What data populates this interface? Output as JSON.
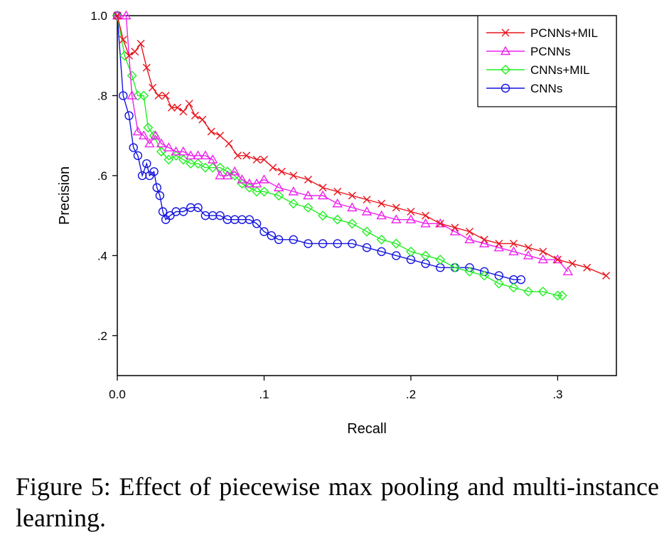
{
  "caption": "Figure 5: Effect of piecewise max pooling and multi-instance learning.",
  "chart_data": {
    "type": "line",
    "title": "",
    "xlabel": "Recall",
    "ylabel": "Precision",
    "xlim": [
      0.0,
      0.34
    ],
    "ylim": [
      0.1,
      1.0
    ],
    "x_ticks": [
      {
        "v": 0.0,
        "label": "0.0"
      },
      {
        "v": 0.1,
        "label": ".1"
      },
      {
        "v": 0.2,
        "label": ".2"
      },
      {
        "v": 0.3,
        "label": ".3"
      }
    ],
    "y_ticks": [
      {
        "v": 0.2,
        "label": ".2"
      },
      {
        "v": 0.4,
        "label": ".4"
      },
      {
        "v": 0.6,
        "label": ".6"
      },
      {
        "v": 0.8,
        "label": ".8"
      },
      {
        "v": 1.0,
        "label": "1.0"
      }
    ],
    "grid": false,
    "legend_position": "top-right",
    "series": [
      {
        "name": "PCNNs+MIL",
        "color": "#e8141c",
        "marker": "x",
        "x": [
          0.0,
          0.004,
          0.008,
          0.012,
          0.016,
          0.02,
          0.024,
          0.028,
          0.033,
          0.037,
          0.041,
          0.045,
          0.049,
          0.053,
          0.058,
          0.064,
          0.07,
          0.076,
          0.082,
          0.088,
          0.095,
          0.1,
          0.106,
          0.112,
          0.12,
          0.13,
          0.14,
          0.15,
          0.16,
          0.17,
          0.18,
          0.19,
          0.2,
          0.21,
          0.22,
          0.23,
          0.24,
          0.25,
          0.26,
          0.27,
          0.28,
          0.29,
          0.3,
          0.31,
          0.32,
          0.333
        ],
        "y": [
          1.0,
          0.94,
          0.9,
          0.91,
          0.93,
          0.87,
          0.82,
          0.8,
          0.8,
          0.77,
          0.77,
          0.76,
          0.78,
          0.75,
          0.74,
          0.71,
          0.7,
          0.68,
          0.65,
          0.65,
          0.64,
          0.64,
          0.62,
          0.61,
          0.6,
          0.59,
          0.57,
          0.56,
          0.55,
          0.54,
          0.53,
          0.52,
          0.51,
          0.5,
          0.48,
          0.47,
          0.46,
          0.44,
          0.43,
          0.43,
          0.42,
          0.41,
          0.39,
          0.38,
          0.37,
          0.35
        ]
      },
      {
        "name": "PCNNs",
        "color": "#ee22ee",
        "marker": "triangle",
        "x": [
          0.0,
          0.006,
          0.01,
          0.014,
          0.018,
          0.022,
          0.026,
          0.03,
          0.035,
          0.04,
          0.045,
          0.05,
          0.055,
          0.06,
          0.065,
          0.07,
          0.075,
          0.08,
          0.085,
          0.09,
          0.095,
          0.1,
          0.11,
          0.12,
          0.13,
          0.14,
          0.15,
          0.16,
          0.17,
          0.18,
          0.19,
          0.2,
          0.21,
          0.22,
          0.23,
          0.24,
          0.25,
          0.26,
          0.27,
          0.28,
          0.29,
          0.3,
          0.307
        ],
        "y": [
          1.0,
          1.0,
          0.8,
          0.71,
          0.7,
          0.68,
          0.7,
          0.68,
          0.67,
          0.66,
          0.66,
          0.65,
          0.65,
          0.65,
          0.64,
          0.6,
          0.6,
          0.61,
          0.59,
          0.58,
          0.58,
          0.59,
          0.57,
          0.56,
          0.55,
          0.55,
          0.53,
          0.52,
          0.51,
          0.5,
          0.49,
          0.49,
          0.48,
          0.48,
          0.46,
          0.44,
          0.43,
          0.42,
          0.41,
          0.4,
          0.39,
          0.39,
          0.36
        ]
      },
      {
        "name": "CNNs+MIL",
        "color": "#22ee22",
        "marker": "diamond",
        "x": [
          0.0,
          0.005,
          0.01,
          0.014,
          0.018,
          0.021,
          0.025,
          0.03,
          0.035,
          0.04,
          0.045,
          0.05,
          0.055,
          0.06,
          0.065,
          0.07,
          0.075,
          0.08,
          0.085,
          0.09,
          0.095,
          0.1,
          0.11,
          0.12,
          0.13,
          0.14,
          0.15,
          0.16,
          0.17,
          0.18,
          0.19,
          0.2,
          0.21,
          0.22,
          0.23,
          0.24,
          0.25,
          0.26,
          0.27,
          0.28,
          0.29,
          0.3,
          0.303
        ],
        "y": [
          1.0,
          0.9,
          0.85,
          0.8,
          0.8,
          0.72,
          0.7,
          0.66,
          0.64,
          0.65,
          0.64,
          0.63,
          0.63,
          0.62,
          0.62,
          0.62,
          0.61,
          0.6,
          0.58,
          0.57,
          0.56,
          0.56,
          0.55,
          0.53,
          0.52,
          0.5,
          0.49,
          0.48,
          0.46,
          0.44,
          0.43,
          0.41,
          0.4,
          0.39,
          0.37,
          0.36,
          0.35,
          0.33,
          0.32,
          0.31,
          0.31,
          0.3,
          0.3
        ]
      },
      {
        "name": "CNNs",
        "color": "#1414e0",
        "marker": "circle",
        "x": [
          0.0,
          0.004,
          0.008,
          0.011,
          0.014,
          0.017,
          0.02,
          0.022,
          0.025,
          0.027,
          0.029,
          0.031,
          0.033,
          0.036,
          0.04,
          0.045,
          0.05,
          0.055,
          0.06,
          0.065,
          0.07,
          0.075,
          0.08,
          0.085,
          0.09,
          0.095,
          0.1,
          0.105,
          0.11,
          0.12,
          0.13,
          0.14,
          0.15,
          0.16,
          0.17,
          0.18,
          0.19,
          0.2,
          0.21,
          0.22,
          0.23,
          0.24,
          0.25,
          0.26,
          0.27,
          0.275
        ],
        "y": [
          1.0,
          0.8,
          0.75,
          0.67,
          0.65,
          0.6,
          0.63,
          0.6,
          0.61,
          0.57,
          0.55,
          0.51,
          0.49,
          0.5,
          0.51,
          0.51,
          0.52,
          0.52,
          0.5,
          0.5,
          0.5,
          0.49,
          0.49,
          0.49,
          0.49,
          0.48,
          0.46,
          0.45,
          0.44,
          0.44,
          0.43,
          0.43,
          0.43,
          0.43,
          0.42,
          0.41,
          0.4,
          0.39,
          0.38,
          0.37,
          0.37,
          0.37,
          0.36,
          0.35,
          0.34,
          0.34
        ]
      }
    ]
  }
}
